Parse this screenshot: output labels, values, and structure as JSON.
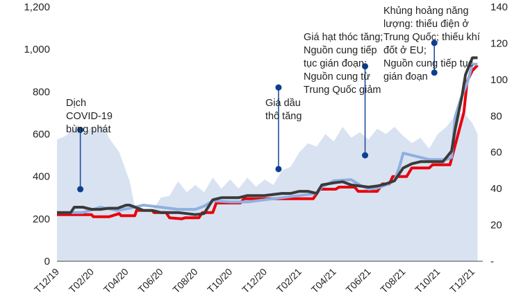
{
  "chart_data": {
    "type": "line",
    "title": "",
    "xlabel": "",
    "ylabel": "",
    "y_left": {
      "ticks": [
        "0",
        "200",
        "400",
        "600",
        "800",
        "1,000",
        "1,200"
      ],
      "ylim": [
        0,
        1200
      ]
    },
    "y_right": {
      "ticks": [
        "-",
        "20",
        "40",
        "60",
        "80",
        "100",
        "120",
        "140"
      ],
      "ylim": [
        0,
        140
      ]
    },
    "x_ticks": [
      "T12/19",
      "T02/20",
      "T04/20",
      "T06/20",
      "T08/20",
      "T10/20",
      "T12/20",
      "T02/21",
      "T04/21",
      "T06/21",
      "T08/21",
      "T10/21",
      "T12/21"
    ],
    "x_range": [
      0,
      24.6
    ],
    "grid": false,
    "legend": "none",
    "series": [
      {
        "axis": "right",
        "kind": "area",
        "color": "#d9e2f1",
        "x": [
          0,
          0.5,
          1,
          1.2,
          1.5,
          1.8,
          2,
          2.3,
          2.5,
          2.8,
          3,
          3.3,
          3.6,
          3.9,
          4.2,
          4.5,
          4.8,
          5.2,
          5.6,
          6,
          6.5,
          7,
          7.5,
          8,
          8.5,
          9,
          9.5,
          10,
          10.5,
          11,
          11.5,
          12,
          12.5,
          13,
          13.5,
          14,
          14.5,
          15,
          15.5,
          16,
          16.5,
          17,
          17.5,
          18,
          18.5,
          19,
          19.5,
          20,
          20.5,
          21,
          21.5,
          22,
          22.5,
          23,
          23.5,
          24,
          24.3
        ],
        "y": [
          67,
          69,
          73,
          75,
          70,
          72,
          74,
          71,
          75,
          73,
          68,
          64,
          60,
          52,
          44,
          30,
          28,
          27,
          29,
          35,
          36,
          44,
          38,
          42,
          38,
          46,
          40,
          45,
          40,
          46,
          41,
          45,
          42,
          50,
          52,
          60,
          65,
          63,
          70,
          66,
          74,
          68,
          71,
          67,
          73,
          70,
          74,
          69,
          65,
          68,
          62,
          70,
          74,
          80,
          82,
          76,
          70
        ]
      },
      {
        "name": "",
        "axis": "left",
        "color": "#e8000b",
        "x": [
          0,
          2,
          2.1,
          3,
          3.6,
          3.7,
          4.5,
          4.6,
          5.5,
          5.6,
          6.3,
          6.5,
          7.2,
          7.4,
          8.2,
          8.4,
          9,
          9.2,
          10.6,
          10.8,
          14.8,
          15.2,
          16.1,
          16.3,
          17.2,
          17.4,
          18.5,
          18.8,
          19.2,
          19.4,
          20.2,
          20.5,
          21.5,
          21.7,
          22.5,
          22.7,
          23.5,
          23.7,
          24,
          24.3
        ],
        "y": [
          220,
          220,
          210,
          210,
          225,
          215,
          215,
          240,
          240,
          230,
          230,
          205,
          200,
          205,
          205,
          230,
          230,
          275,
          275,
          295,
          295,
          340,
          340,
          350,
          350,
          330,
          330,
          365,
          365,
          400,
          400,
          440,
          440,
          455,
          455,
          455,
          700,
          850,
          900,
          925
        ]
      },
      {
        "name": "",
        "axis": "left",
        "color": "#8fb0e0",
        "x": [
          0,
          1.5,
          2.5,
          3.5,
          4.2,
          5,
          6,
          7,
          8,
          8.5,
          9,
          10,
          11,
          12,
          13,
          14,
          15,
          15.3,
          16,
          17,
          17.5,
          18,
          18.5,
          19,
          19.5,
          19.8,
          20,
          20.5,
          21.5,
          21.8,
          22.5,
          22.8,
          23,
          23.3,
          23.7,
          24,
          24.3
        ],
        "y": [
          230,
          230,
          255,
          240,
          250,
          265,
          255,
          245,
          245,
          260,
          285,
          280,
          280,
          290,
          300,
          310,
          320,
          350,
          380,
          385,
          360,
          340,
          345,
          360,
          380,
          450,
          510,
          500,
          480,
          480,
          480,
          490,
          680,
          760,
          840,
          930,
          930
        ]
      },
      {
        "name": "",
        "axis": "left",
        "color": "#3a3a3a",
        "x": [
          0,
          0.8,
          1,
          1.5,
          2,
          2.5,
          3,
          3.5,
          4,
          4.2,
          5,
          5.5,
          6,
          7,
          8,
          8.5,
          9,
          9.5,
          10,
          10.5,
          11,
          12,
          13,
          13.5,
          14,
          14.5,
          15,
          15.3,
          16,
          16.5,
          17,
          17.5,
          18,
          18.5,
          19,
          19.5,
          20,
          20.5,
          21,
          21.5,
          22,
          22.3,
          22.8,
          23,
          23.4,
          23.6,
          24,
          24.3
        ],
        "y": [
          230,
          230,
          255,
          255,
          245,
          245,
          250,
          250,
          265,
          265,
          240,
          240,
          230,
          230,
          220,
          225,
          290,
          300,
          300,
          300,
          310,
          310,
          320,
          320,
          330,
          330,
          320,
          360,
          370,
          375,
          360,
          355,
          350,
          355,
          365,
          380,
          440,
          460,
          470,
          470,
          470,
          470,
          520,
          620,
          780,
          880,
          960,
          960
        ]
      }
    ],
    "annotations": [
      {
        "lines": [
          "Dịch",
          "COVID-19",
          "bùng phát"
        ],
        "x": 1.35,
        "y1": 620,
        "y2": 340
      },
      {
        "lines": [
          "Giá dầu",
          "thô tăng"
        ],
        "x": 12.8,
        "y1": 820,
        "y2": 435
      },
      {
        "lines": [
          "Giá hạt thóc tăng;",
          "Nguồn cung tiếp",
          "tục gián đoạn;",
          "Nguồn cung từ",
          "Trung Quốc giảm"
        ],
        "x": 17.8,
        "y1": 920,
        "y2": 500
      },
      {
        "lines": [
          "Khủng hoảng năng",
          "lượng: thiếu điện ở",
          "Trung Quốc; thiếu khí",
          "đốt ở EU;",
          "Nguồn cung tiếp tục",
          "gián đoạn"
        ],
        "x": 21.8,
        "y1": 890,
        "y2": 1030
      }
    ]
  }
}
